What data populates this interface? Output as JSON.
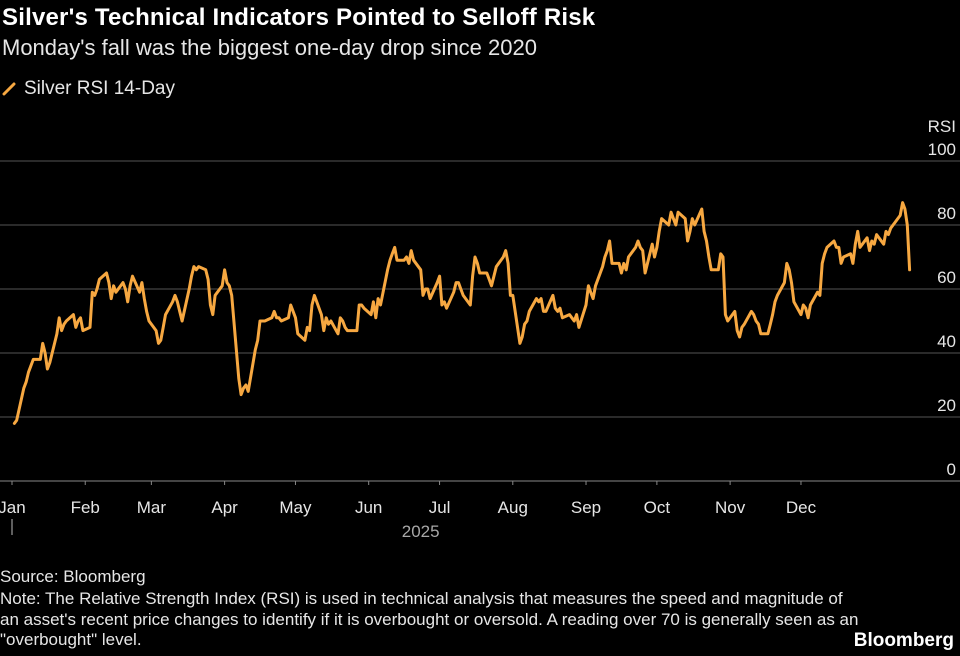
{
  "header": {
    "title": "Silver's Technical Indicators Pointed to Selloff Risk",
    "subtitle": "Monday's fall was the biggest one-day drop since 2020"
  },
  "legend": {
    "label": "Silver RSI 14-Day",
    "color": "#f7a841"
  },
  "footer": {
    "source": "Source: Bloomberg",
    "note": "Note: The Relative Strength Index (RSI) is used in technical analysis that measures the speed and magnitude of an asset's recent price changes to identify if it is overbought or oversold. A reading over 70 is generally seen as an \"overbought\" level.",
    "brand": "Bloomberg"
  },
  "colors": {
    "background": "#000000",
    "line": "#f7a841",
    "grid": "#555555",
    "text": "#e6e6e6"
  },
  "chart_data": {
    "type": "line",
    "title": "Silver's Technical Indicators Pointed to Selloff Risk",
    "subtitle": "Monday's fall was the biggest one-day drop since 2020",
    "ylabel": "RSI",
    "xlabel": "2025",
    "ylim": [
      0,
      100
    ],
    "yticks": [
      0,
      20,
      40,
      60,
      80,
      100
    ],
    "grid": true,
    "legend_position": "top-left",
    "y_axis_position": "right",
    "x_ticks": [
      "Jan",
      "Feb",
      "Mar",
      "Apr",
      "May",
      "Jun",
      "Jul",
      "Aug",
      "Sep",
      "Oct",
      "Nov",
      "Dec"
    ],
    "year_label": "2025",
    "series": [
      {
        "name": "Silver RSI 14-Day",
        "color": "#f7a841",
        "points": [
          [
            "2025-01-02",
            18
          ],
          [
            "2025-01-03",
            19
          ],
          [
            "2025-01-06",
            29
          ],
          [
            "2025-01-07",
            31
          ],
          [
            "2025-01-08",
            34
          ],
          [
            "2025-01-09",
            36
          ],
          [
            "2025-01-10",
            38
          ],
          [
            "2025-01-13",
            38
          ],
          [
            "2025-01-14",
            43
          ],
          [
            "2025-01-15",
            40
          ],
          [
            "2025-01-16",
            35
          ],
          [
            "2025-01-17",
            37
          ],
          [
            "2025-01-20",
            46
          ],
          [
            "2025-01-21",
            51
          ],
          [
            "2025-01-22",
            47
          ],
          [
            "2025-01-23",
            49
          ],
          [
            "2025-01-24",
            50
          ],
          [
            "2025-01-27",
            52
          ],
          [
            "2025-01-28",
            48
          ],
          [
            "2025-01-29",
            50
          ],
          [
            "2025-01-30",
            51
          ],
          [
            "2025-01-31",
            47
          ],
          [
            "2025-02-03",
            48
          ],
          [
            "2025-02-04",
            59
          ],
          [
            "2025-02-05",
            58
          ],
          [
            "2025-02-06",
            60
          ],
          [
            "2025-02-07",
            63
          ],
          [
            "2025-02-10",
            65
          ],
          [
            "2025-02-11",
            62
          ],
          [
            "2025-02-12",
            57
          ],
          [
            "2025-02-13",
            61
          ],
          [
            "2025-02-14",
            59
          ],
          [
            "2025-02-17",
            62
          ],
          [
            "2025-02-18",
            60
          ],
          [
            "2025-02-19",
            56
          ],
          [
            "2025-02-20",
            61
          ],
          [
            "2025-02-21",
            64
          ],
          [
            "2025-02-24",
            59
          ],
          [
            "2025-02-25",
            62
          ],
          [
            "2025-02-26",
            57
          ],
          [
            "2025-02-27",
            53
          ],
          [
            "2025-02-28",
            50
          ],
          [
            "2025-03-03",
            47
          ],
          [
            "2025-03-04",
            43
          ],
          [
            "2025-03-05",
            44
          ],
          [
            "2025-03-06",
            48
          ],
          [
            "2025-03-07",
            52
          ],
          [
            "2025-03-10",
            56
          ],
          [
            "2025-03-11",
            58
          ],
          [
            "2025-03-12",
            56
          ],
          [
            "2025-03-13",
            53
          ],
          [
            "2025-03-14",
            50
          ],
          [
            "2025-03-17",
            60
          ],
          [
            "2025-03-18",
            64
          ],
          [
            "2025-03-19",
            67
          ],
          [
            "2025-03-20",
            66
          ],
          [
            "2025-03-21",
            67
          ],
          [
            "2025-03-24",
            66
          ],
          [
            "2025-03-25",
            63
          ],
          [
            "2025-03-26",
            55
          ],
          [
            "2025-03-27",
            52
          ],
          [
            "2025-03-28",
            58
          ],
          [
            "2025-03-31",
            61
          ],
          [
            "2025-04-01",
            66
          ],
          [
            "2025-04-02",
            62
          ],
          [
            "2025-04-03",
            61
          ],
          [
            "2025-04-04",
            58
          ],
          [
            "2025-04-07",
            32
          ],
          [
            "2025-04-08",
            27
          ],
          [
            "2025-04-09",
            29
          ],
          [
            "2025-04-10",
            30
          ],
          [
            "2025-04-11",
            28
          ],
          [
            "2025-04-14",
            41
          ],
          [
            "2025-04-15",
            44
          ],
          [
            "2025-04-16",
            50
          ],
          [
            "2025-04-17",
            50
          ],
          [
            "2025-04-18",
            50
          ],
          [
            "2025-04-21",
            51
          ],
          [
            "2025-04-22",
            53
          ],
          [
            "2025-04-23",
            51
          ],
          [
            "2025-04-24",
            51
          ],
          [
            "2025-04-25",
            50
          ],
          [
            "2025-04-28",
            51
          ],
          [
            "2025-04-29",
            55
          ],
          [
            "2025-04-30",
            53
          ],
          [
            "2025-05-01",
            51
          ],
          [
            "2025-05-02",
            46
          ],
          [
            "2025-05-05",
            44
          ],
          [
            "2025-05-06",
            48
          ],
          [
            "2025-05-07",
            47
          ],
          [
            "2025-05-08",
            55
          ],
          [
            "2025-05-09",
            58
          ],
          [
            "2025-05-12",
            52
          ],
          [
            "2025-05-13",
            47
          ],
          [
            "2025-05-14",
            51
          ],
          [
            "2025-05-15",
            49
          ],
          [
            "2025-05-16",
            50
          ],
          [
            "2025-05-19",
            46
          ],
          [
            "2025-05-20",
            51
          ],
          [
            "2025-05-21",
            50
          ],
          [
            "2025-05-22",
            48
          ],
          [
            "2025-05-23",
            47
          ],
          [
            "2025-05-26",
            47
          ],
          [
            "2025-05-27",
            47
          ],
          [
            "2025-05-28",
            55
          ],
          [
            "2025-05-29",
            55
          ],
          [
            "2025-05-30",
            54
          ],
          [
            "2025-06-02",
            52
          ],
          [
            "2025-06-03",
            56
          ],
          [
            "2025-06-04",
            51
          ],
          [
            "2025-06-05",
            57
          ],
          [
            "2025-06-06",
            55
          ],
          [
            "2025-06-09",
            66
          ],
          [
            "2025-06-10",
            69
          ],
          [
            "2025-06-11",
            71
          ],
          [
            "2025-06-12",
            73
          ],
          [
            "2025-06-13",
            69
          ],
          [
            "2025-06-16",
            69
          ],
          [
            "2025-06-17",
            70
          ],
          [
            "2025-06-18",
            68
          ],
          [
            "2025-06-19",
            72
          ],
          [
            "2025-06-20",
            69
          ],
          [
            "2025-06-23",
            66
          ],
          [
            "2025-06-24",
            58
          ],
          [
            "2025-06-25",
            60
          ],
          [
            "2025-06-26",
            60
          ],
          [
            "2025-06-27",
            57
          ],
          [
            "2025-06-30",
            62
          ],
          [
            "2025-07-01",
            64
          ],
          [
            "2025-07-02",
            55
          ],
          [
            "2025-07-03",
            56
          ],
          [
            "2025-07-04",
            54
          ],
          [
            "2025-07-07",
            59
          ],
          [
            "2025-07-08",
            62
          ],
          [
            "2025-07-09",
            62
          ],
          [
            "2025-07-10",
            60
          ],
          [
            "2025-07-11",
            58
          ],
          [
            "2025-07-14",
            55
          ],
          [
            "2025-07-15",
            64
          ],
          [
            "2025-07-16",
            70
          ],
          [
            "2025-07-17",
            68
          ],
          [
            "2025-07-18",
            65
          ],
          [
            "2025-07-21",
            65
          ],
          [
            "2025-07-22",
            63
          ],
          [
            "2025-07-23",
            61
          ],
          [
            "2025-07-24",
            64
          ],
          [
            "2025-07-25",
            67
          ],
          [
            "2025-07-28",
            70
          ],
          [
            "2025-07-29",
            72
          ],
          [
            "2025-07-30",
            68
          ],
          [
            "2025-07-31",
            58
          ],
          [
            "2025-08-01",
            58
          ],
          [
            "2025-08-04",
            43
          ],
          [
            "2025-08-05",
            45
          ],
          [
            "2025-08-06",
            49
          ],
          [
            "2025-08-07",
            50
          ],
          [
            "2025-08-08",
            53
          ],
          [
            "2025-08-11",
            57
          ],
          [
            "2025-08-12",
            56
          ],
          [
            "2025-08-13",
            57
          ],
          [
            "2025-08-14",
            53
          ],
          [
            "2025-08-15",
            53
          ],
          [
            "2025-08-18",
            58
          ],
          [
            "2025-08-19",
            54
          ],
          [
            "2025-08-20",
            53
          ],
          [
            "2025-08-21",
            54
          ],
          [
            "2025-08-22",
            51
          ],
          [
            "2025-08-25",
            52
          ],
          [
            "2025-08-26",
            51
          ],
          [
            "2025-08-27",
            50
          ],
          [
            "2025-08-28",
            52
          ],
          [
            "2025-08-29",
            48
          ],
          [
            "2025-09-01",
            55
          ],
          [
            "2025-09-02",
            61
          ],
          [
            "2025-09-03",
            59
          ],
          [
            "2025-09-04",
            57
          ],
          [
            "2025-09-05",
            61
          ],
          [
            "2025-09-08",
            67
          ],
          [
            "2025-09-09",
            70
          ],
          [
            "2025-09-10",
            72
          ],
          [
            "2025-09-11",
            75
          ],
          [
            "2025-09-12",
            68
          ],
          [
            "2025-09-15",
            68
          ],
          [
            "2025-09-16",
            65
          ],
          [
            "2025-09-17",
            68
          ],
          [
            "2025-09-18",
            66
          ],
          [
            "2025-09-19",
            70
          ],
          [
            "2025-09-22",
            73
          ],
          [
            "2025-09-23",
            75
          ],
          [
            "2025-09-24",
            73
          ],
          [
            "2025-09-25",
            72
          ],
          [
            "2025-09-26",
            65
          ],
          [
            "2025-09-29",
            74
          ],
          [
            "2025-09-30",
            70
          ],
          [
            "2025-10-01",
            73
          ],
          [
            "2025-10-02",
            78
          ],
          [
            "2025-10-03",
            82
          ],
          [
            "2025-10-06",
            80
          ],
          [
            "2025-10-07",
            84
          ],
          [
            "2025-10-08",
            82
          ],
          [
            "2025-10-09",
            80
          ],
          [
            "2025-10-10",
            84
          ],
          [
            "2025-10-13",
            82
          ],
          [
            "2025-10-14",
            75
          ],
          [
            "2025-10-15",
            78
          ],
          [
            "2025-10-16",
            82
          ],
          [
            "2025-10-17",
            80
          ],
          [
            "2025-10-20",
            85
          ],
          [
            "2025-10-21",
            78
          ],
          [
            "2025-10-22",
            75
          ],
          [
            "2025-10-23",
            70
          ],
          [
            "2025-10-24",
            66
          ],
          [
            "2025-10-27",
            66
          ],
          [
            "2025-10-28",
            71
          ],
          [
            "2025-10-29",
            70
          ],
          [
            "2025-10-30",
            52
          ],
          [
            "2025-10-31",
            50
          ],
          [
            "2025-11-03",
            53
          ],
          [
            "2025-11-04",
            47
          ],
          [
            "2025-11-05",
            45
          ],
          [
            "2025-11-06",
            48
          ],
          [
            "2025-11-07",
            49
          ],
          [
            "2025-11-10",
            53
          ],
          [
            "2025-11-11",
            52
          ],
          [
            "2025-11-12",
            50
          ],
          [
            "2025-11-13",
            49
          ],
          [
            "2025-11-14",
            46
          ],
          [
            "2025-11-17",
            46
          ],
          [
            "2025-11-18",
            49
          ],
          [
            "2025-11-19",
            52
          ],
          [
            "2025-11-20",
            56
          ],
          [
            "2025-11-21",
            58
          ],
          [
            "2025-11-24",
            62
          ],
          [
            "2025-11-25",
            68
          ],
          [
            "2025-11-26",
            66
          ],
          [
            "2025-11-27",
            62
          ],
          [
            "2025-11-28",
            56
          ],
          [
            "2025-12-01",
            52
          ],
          [
            "2025-12-02",
            55
          ],
          [
            "2025-12-03",
            54
          ],
          [
            "2025-12-04",
            51
          ],
          [
            "2025-12-05",
            55
          ],
          [
            "2025-12-08",
            59
          ],
          [
            "2025-12-09",
            58
          ],
          [
            "2025-12-10",
            68
          ],
          [
            "2025-12-11",
            71
          ],
          [
            "2025-12-12",
            73
          ],
          [
            "2025-12-15",
            75
          ],
          [
            "2025-12-16",
            73
          ],
          [
            "2025-12-17",
            73
          ],
          [
            "2025-12-18",
            68
          ],
          [
            "2025-12-19",
            70
          ],
          [
            "2025-12-22",
            71
          ],
          [
            "2025-12-23",
            68
          ],
          [
            "2025-12-24",
            74
          ],
          [
            "2025-12-25",
            78
          ],
          [
            "2025-12-26",
            73
          ],
          [
            "2025-12-29",
            76
          ],
          [
            "2025-12-30",
            72
          ],
          [
            "2025-12-31",
            75
          ],
          [
            "2026-01-01",
            74
          ],
          [
            "2026-01-02",
            77
          ],
          [
            "2026-01-05",
            74
          ],
          [
            "2026-01-06",
            78
          ],
          [
            "2026-01-07",
            77
          ],
          [
            "2026-01-08",
            79
          ],
          [
            "2026-01-09",
            80
          ],
          [
            "2026-01-12",
            83
          ],
          [
            "2026-01-13",
            87
          ],
          [
            "2026-01-14",
            85
          ],
          [
            "2026-01-15",
            80
          ],
          [
            "2026-01-16",
            66
          ]
        ]
      }
    ]
  }
}
